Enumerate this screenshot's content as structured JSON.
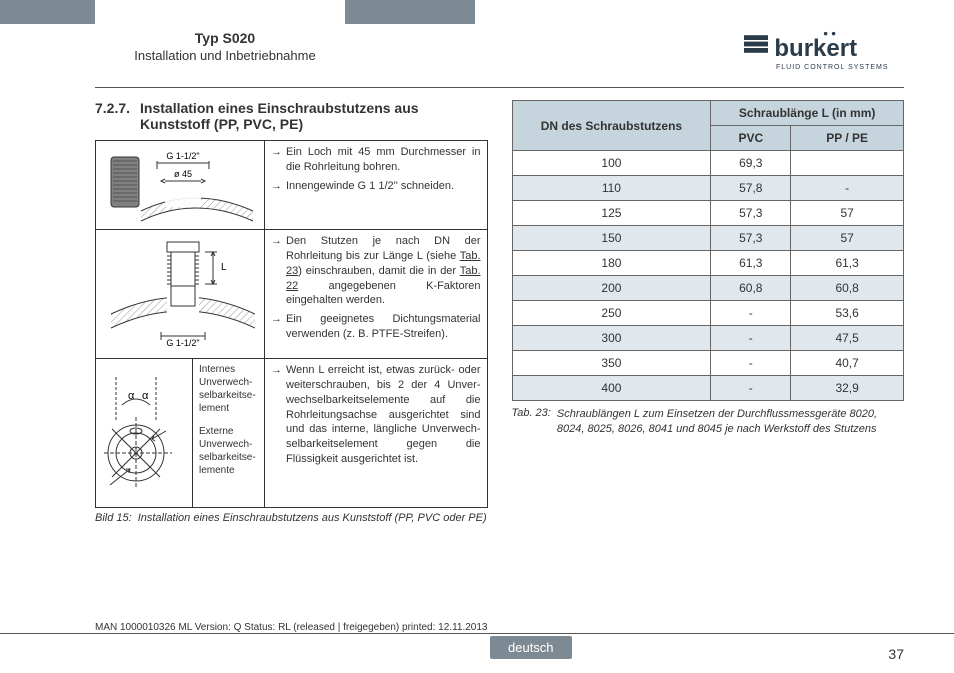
{
  "header": {
    "type": "Typ S020",
    "subtitle": "Installation und Inbetriebnahme",
    "logo_name": "burkert",
    "logo_tagline": "FLUID CONTROL SYSTEMS"
  },
  "section": {
    "number": "7.2.7.",
    "title": "Installation eines Einschraubstutzens aus Kunststoff (PP, PVC, PE)"
  },
  "steps_row1": [
    "Ein Loch mit 45 mm Durch­messer in die Rohrleitung bohren.",
    "Innengewinde G 1 1/2'' schneiden."
  ],
  "steps_row2": [
    "Den Stutzen je nach DN der Rohrleitung bis zur Länge L (siehe Tab. 23) einschrauben, damit die in der Tab. 22 angegebenen K-Faktoren eingehalten werden.",
    "Ein geeignetes Dichtungs­material verwenden (z. B. PTFE-Streifen)."
  ],
  "steps_row3": [
    "Wenn L erreicht ist, etwas zurück- oder weiter­schrauben, bis 2 der 4 Unver­wechselbarkeitselemente auf die Rohrleitungsachse ausgerichtet sind und das interne, längliche Unverwech­selbarkeitselement gegen die Flüssigkeit ausgerichtet ist."
  ],
  "diag3_labels": {
    "internal": "Internes Unverwech­selbarkeitse­lement",
    "external": "Externe Unverwech­selbarkeitse­lemente"
  },
  "diag1": {
    "top_label": "G 1-1/2\"",
    "dia_label": "ø 45"
  },
  "diag2": {
    "bottom_label": "G 1-1/2\"",
    "side_label": "L"
  },
  "diag3": {
    "alpha": "α"
  },
  "figure_caption": {
    "label": "Bild 15:",
    "text": "Installation eines Einschraubstutzens aus Kunststoff (PP, PVC oder PE)"
  },
  "table": {
    "dn_header": "DN des Schraubstutzens",
    "length_header": "Schraublänge L (in mm)",
    "col_pvc": "PVC",
    "col_pppe": "PP / PE",
    "header_bg": "#c5d4dd",
    "row_alt_bg": "#e0e8ed",
    "rows": [
      {
        "dn": "100",
        "pvc": "69,3",
        "pppe": ""
      },
      {
        "dn": "110",
        "pvc": "57,8",
        "pppe": "-"
      },
      {
        "dn": "125",
        "pvc": "57,3",
        "pppe": "57"
      },
      {
        "dn": "150",
        "pvc": "57,3",
        "pppe": "57"
      },
      {
        "dn": "180",
        "pvc": "61,3",
        "pppe": "61,3"
      },
      {
        "dn": "200",
        "pvc": "60,8",
        "pppe": "60,8"
      },
      {
        "dn": "250",
        "pvc": "-",
        "pppe": "53,6"
      },
      {
        "dn": "300",
        "pvc": "-",
        "pppe": "47,5"
      },
      {
        "dn": "350",
        "pvc": "-",
        "pppe": "40,7"
      },
      {
        "dn": "400",
        "pvc": "-",
        "pppe": "32,9"
      }
    ]
  },
  "table_caption": {
    "label": "Tab. 23:",
    "text": "Schraublängen L zum Einsetzen der Durchfluss­messgeräte 8020, 8024, 8025, 8026, 8041 und 8045 je nach Werkstoff des Stutzens"
  },
  "man_line": "MAN  1000010326  ML  Version: Q Status: RL (released | freigegeben)  printed: 12.11.2013",
  "footer": {
    "language": "deutsch",
    "page": "37"
  }
}
